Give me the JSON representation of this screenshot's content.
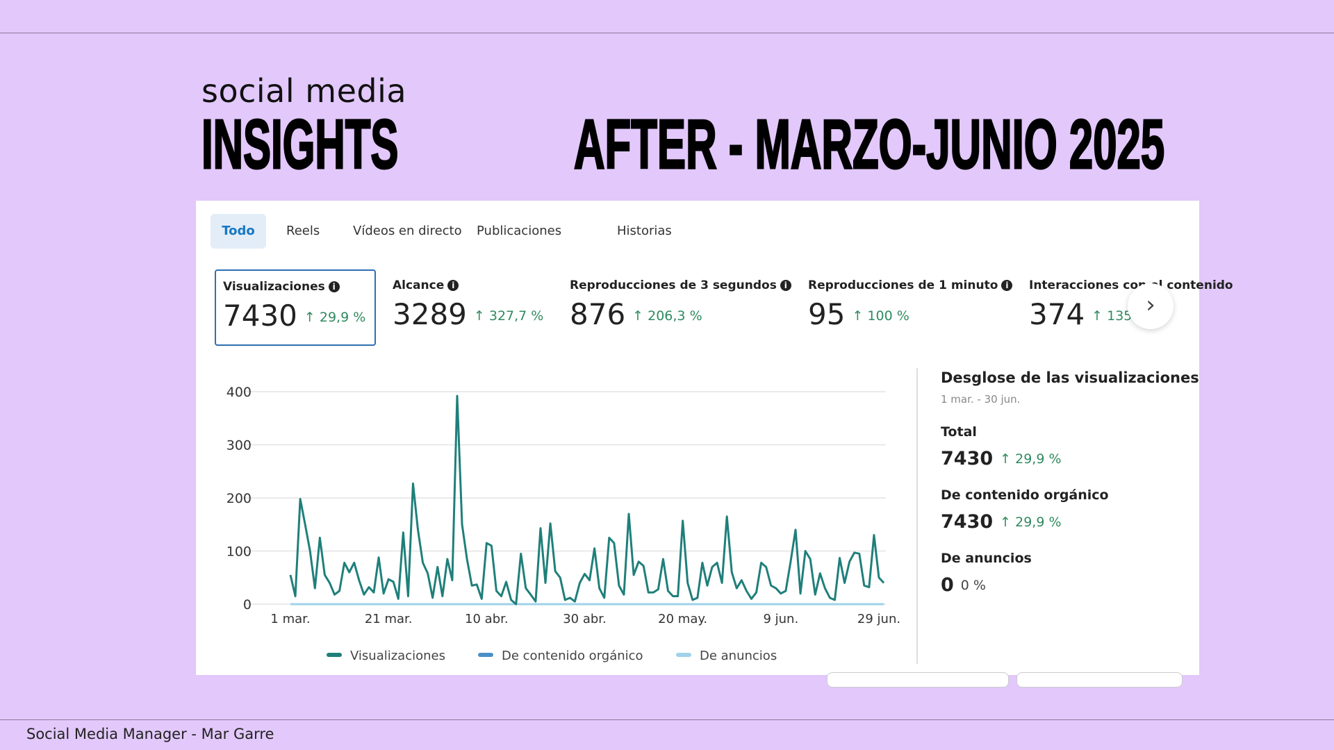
{
  "header": {
    "subtitle": "social media",
    "title": "INSIGHTS",
    "period": "AFTER - MARZO-JUNIO 2025"
  },
  "tabs": [
    "Todo",
    "Reels",
    "Vídeos en directo",
    "Publicaciones",
    "Historias"
  ],
  "active_tab": "Todo",
  "metrics": [
    {
      "label": "Visualizaciones",
      "value": "7430",
      "delta": "↑ 29,9 %"
    },
    {
      "label": "Alcance",
      "value": "3289",
      "delta": "↑ 327,7 %"
    },
    {
      "label": "Reproducciones de 3 segundos",
      "value": "876",
      "delta": "↑ 206,3 %"
    },
    {
      "label": "Reproducciones de 1 minuto",
      "value": "95",
      "delta": "↑ 100 %"
    },
    {
      "label": "Interacciones con el contenido",
      "value": "374",
      "delta": "↑ 135,"
    }
  ],
  "breakdown": {
    "title": "Desglose de las visualizaciones",
    "date_range": "1 mar. - 30 jun.",
    "items": [
      {
        "label": "Total",
        "value": "7430",
        "delta": "↑ 29,9 %"
      },
      {
        "label": "De contenido orgánico",
        "value": "7430",
        "delta": "↑ 29,9 %"
      },
      {
        "label": "De anuncios",
        "value": "0",
        "delta": "0 %"
      }
    ]
  },
  "colors": {
    "views": "#1f7f7a",
    "organic": "#4a90c8",
    "ads": "#9fd3ea",
    "positive": "#2f8a5f",
    "background": "#e2c8fb"
  },
  "chart_data": {
    "type": "line",
    "ylim": [
      0,
      400
    ],
    "yticks": [
      "0",
      "100",
      "200",
      "300",
      "400"
    ],
    "xtick_labels": [
      "1 mar.",
      "21 mar.",
      "10 abr.",
      "30 abr.",
      "20 may.",
      "9 jun.",
      "29 jun."
    ],
    "xtick_days": [
      0,
      20,
      40,
      60,
      80,
      100,
      120
    ],
    "legend": [
      "Visualizaciones",
      "De contenido orgánico",
      "De anuncios"
    ],
    "series": [
      {
        "name": "Visualizaciones",
        "values": [
          55,
          15,
          198,
          150,
          100,
          30,
          125,
          55,
          40,
          18,
          25,
          78,
          60,
          78,
          45,
          18,
          32,
          22,
          88,
          20,
          47,
          42,
          10,
          135,
          15,
          227,
          140,
          78,
          58,
          12,
          70,
          15,
          85,
          45,
          392,
          150,
          85,
          35,
          37,
          10,
          115,
          110,
          25,
          15,
          42,
          8,
          0,
          95,
          30,
          18,
          5,
          143,
          40,
          152,
          62,
          50,
          8,
          12,
          5,
          40,
          57,
          45,
          105,
          30,
          12,
          125,
          115,
          35,
          18,
          170,
          55,
          80,
          72,
          22,
          22,
          28,
          85,
          25,
          15,
          15,
          157,
          40,
          8,
          12,
          78,
          35,
          70,
          78,
          40,
          165,
          60,
          30,
          45,
          25,
          10,
          22,
          78,
          70,
          35,
          30,
          20,
          25,
          80,
          140,
          20,
          100,
          85,
          18,
          58,
          30,
          12,
          8,
          87,
          40,
          80,
          97,
          95,
          35,
          32,
          130,
          50,
          40
        ]
      },
      {
        "name": "De anuncios",
        "values": "all 0"
      }
    ]
  },
  "footer": "Social Media Manager - Mar Garre"
}
